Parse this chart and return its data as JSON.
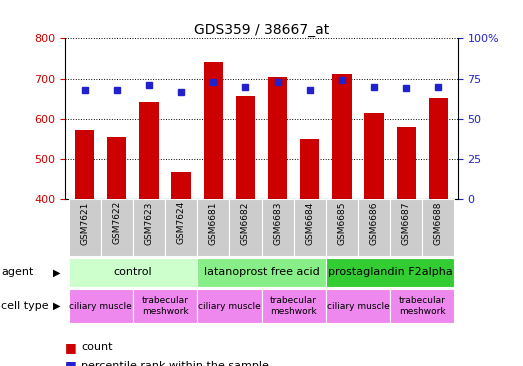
{
  "title": "GDS359 / 38667_at",
  "samples": [
    "GSM7621",
    "GSM7622",
    "GSM7623",
    "GSM7624",
    "GSM6681",
    "GSM6682",
    "GSM6683",
    "GSM6684",
    "GSM6685",
    "GSM6686",
    "GSM6687",
    "GSM6688"
  ],
  "counts": [
    573,
    554,
    643,
    468,
    742,
    658,
    703,
    551,
    712,
    614,
    579,
    651
  ],
  "percentiles": [
    68,
    68,
    71,
    67,
    73,
    70,
    73,
    68,
    74,
    70,
    69,
    70
  ],
  "ymin": 400,
  "ymax": 800,
  "yticks": [
    400,
    500,
    600,
    700,
    800
  ],
  "y2ticks": [
    0,
    25,
    50,
    75,
    100
  ],
  "y2labels": [
    "0",
    "25",
    "50",
    "75",
    "100%"
  ],
  "bar_color": "#cc0000",
  "dot_color": "#2222cc",
  "agent_groups": [
    {
      "label": "control",
      "start": 0,
      "end": 3,
      "color": "#ccffcc"
    },
    {
      "label": "latanoprost free acid",
      "start": 4,
      "end": 7,
      "color": "#88ee88"
    },
    {
      "label": "prostaglandin F2alpha",
      "start": 8,
      "end": 11,
      "color": "#33cc33"
    }
  ],
  "cell_type_groups": [
    {
      "label": "ciliary muscle",
      "start": 0,
      "end": 1,
      "color": "#ee88ee"
    },
    {
      "label": "trabecular\nmeshwork",
      "start": 2,
      "end": 3,
      "color": "#ee88ee"
    },
    {
      "label": "ciliary muscle",
      "start": 4,
      "end": 5,
      "color": "#ee88ee"
    },
    {
      "label": "trabecular\nmeshwork",
      "start": 6,
      "end": 7,
      "color": "#ee88ee"
    },
    {
      "label": "ciliary muscle",
      "start": 8,
      "end": 9,
      "color": "#ee88ee"
    },
    {
      "label": "trabecular\nmeshwork",
      "start": 10,
      "end": 11,
      "color": "#ee88ee"
    }
  ],
  "legend_count_label": "count",
  "legend_pct_label": "percentile rank within the sample",
  "agent_label": "agent",
  "cell_type_label": "cell type",
  "background_color": "#ffffff",
  "grid_color": "#000000",
  "axis_color_left": "#cc0000",
  "axis_color_right": "#2222cc",
  "sample_label_bg": "#cccccc",
  "border_color": "#888888"
}
